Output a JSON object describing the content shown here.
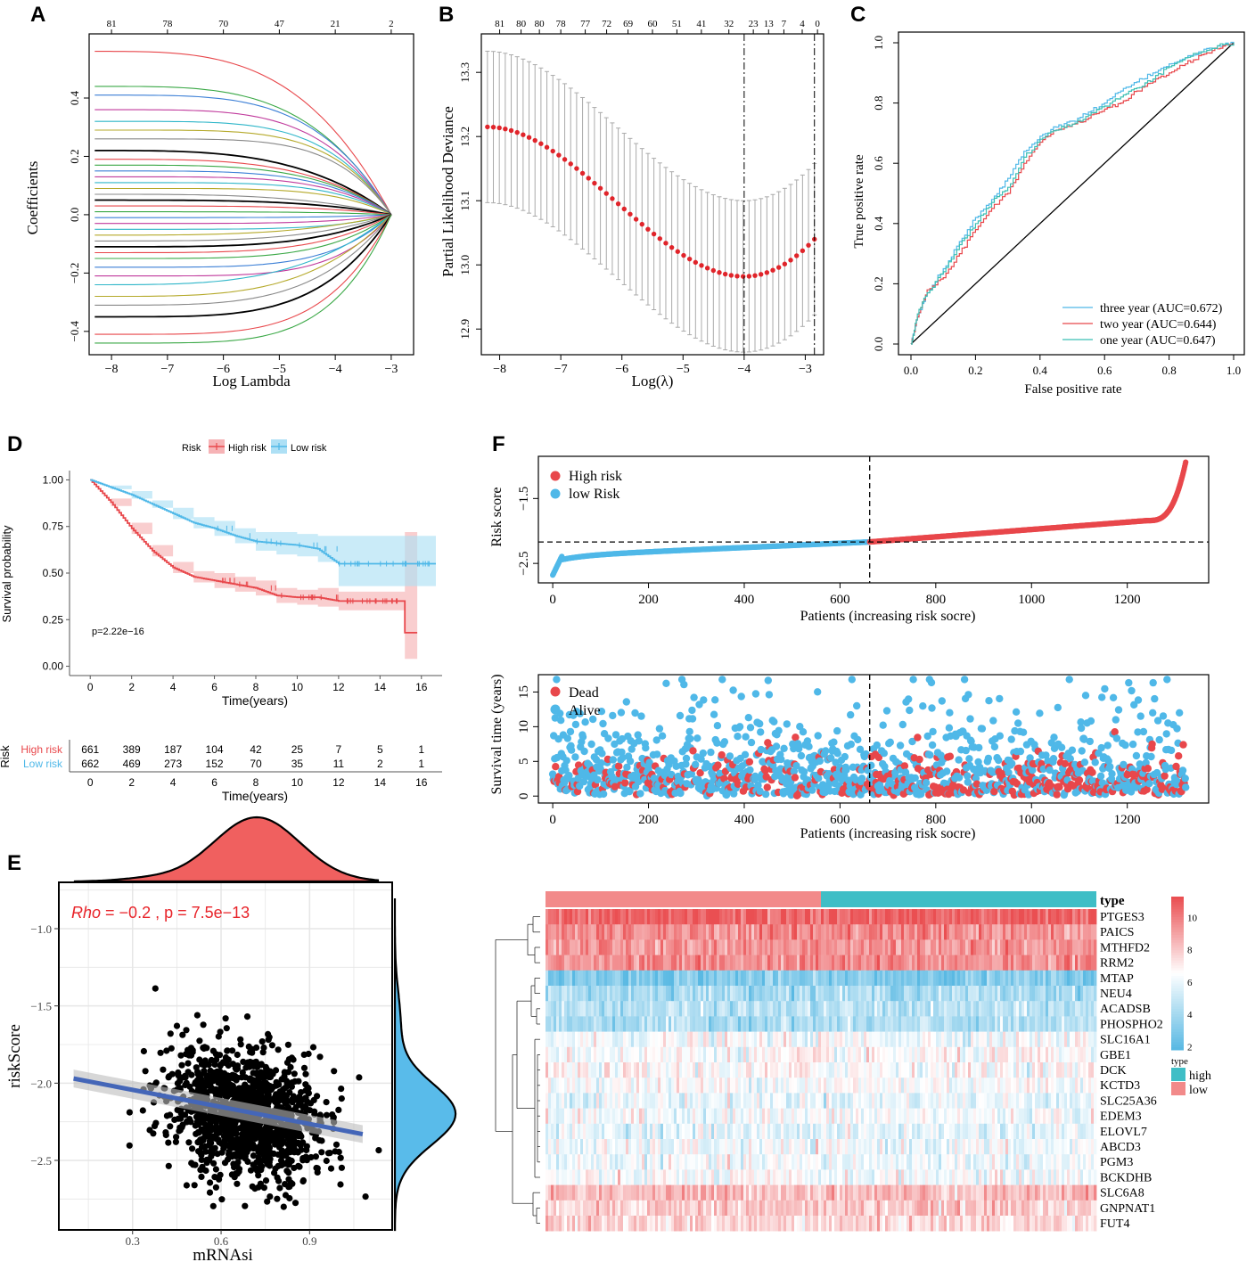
{
  "colors": {
    "high": "#e8474b",
    "low": "#4fb8e8",
    "teal": "#3bbfb3",
    "ciHigh": "#f6b3b6",
    "ciLow": "#aee0f5",
    "heatHigh": "#ea4f52",
    "heatLow": "#5ab9e3",
    "annotHigh": "#3fbec6",
    "annotLow": "#f28a8a",
    "deviance": "#e0242a",
    "regression": "#4466b8",
    "densityRed": "#f0605f",
    "densityBlue": "#59bbea"
  },
  "panels": {
    "A": {
      "letter": "A"
    },
    "B": {
      "letter": "B"
    },
    "C": {
      "letter": "C"
    },
    "D": {
      "letter": "D"
    },
    "E": {
      "letter": "E"
    },
    "F": {
      "letter": "F"
    }
  },
  "chart_data": [
    {
      "id": "A",
      "type": "line",
      "title": "",
      "xlabel": "Log Lambda",
      "ylabel": "Coefficients",
      "xlim": [
        -8.4,
        -2.6
      ],
      "ylim": [
        -0.48,
        0.62
      ],
      "xticks": [
        -8,
        -7,
        -6,
        -5,
        -4,
        -3
      ],
      "yticks": [
        -0.4,
        -0.2,
        0.0,
        0.2,
        0.4
      ],
      "top_axis": {
        "positions": [
          -8,
          -7,
          -6,
          -5,
          -4,
          -3
        ],
        "labels": [
          "81",
          "78",
          "70",
          "47",
          "21",
          "2"
        ]
      },
      "series_start_values": [
        0.56,
        0.44,
        0.41,
        0.36,
        0.32,
        0.29,
        0.26,
        0.22,
        0.19,
        0.17,
        0.15,
        0.13,
        0.11,
        0.09,
        0.07,
        0.05,
        0.03,
        0.01,
        -0.01,
        -0.03,
        -0.05,
        -0.07,
        -0.09,
        -0.11,
        -0.13,
        -0.15,
        -0.18,
        -0.21,
        -0.24,
        -0.28,
        -0.31,
        -0.35,
        -0.41,
        -0.44
      ]
    },
    {
      "id": "B",
      "type": "scatter",
      "title": "",
      "xlabel": "Log(λ)",
      "ylabel": "Partial Likelihood Deviance",
      "xlim": [
        -8.3,
        -2.7
      ],
      "ylim": [
        12.86,
        13.36
      ],
      "xticks": [
        -8,
        -7,
        -6,
        -5,
        -4,
        -3
      ],
      "yticks": [
        12.9,
        13.0,
        13.1,
        13.2,
        13.3
      ],
      "top_axis": {
        "positions": [
          -8.0,
          -7.65,
          -7.35,
          -7.0,
          -6.6,
          -6.25,
          -5.9,
          -5.5,
          -5.1,
          -4.7,
          -4.25,
          -3.85,
          -3.6,
          -3.35,
          -3.05,
          -2.8
        ],
        "labels": [
          "81",
          "80",
          "80",
          "78",
          "77",
          "72",
          "69",
          "60",
          "51",
          "41",
          "32",
          "23",
          "13",
          "7",
          "4",
          "0"
        ]
      },
      "x_start": -8.2,
      "x_end": -2.85,
      "n_points": 56,
      "mean_start": 13.215,
      "mean_min": 12.982,
      "x_min": -4.0,
      "mean_end": 13.04,
      "se_half_width": 0.118,
      "vlines": [
        -4.0,
        -2.85
      ]
    },
    {
      "id": "C",
      "type": "line",
      "title": "",
      "xlabel": "False positive rate",
      "ylabel": "True positive rate",
      "xlim": [
        0,
        1
      ],
      "ylim": [
        0,
        1
      ],
      "xticks": [
        0.0,
        0.2,
        0.4,
        0.6,
        0.8,
        1.0
      ],
      "yticks": [
        0.0,
        0.2,
        0.4,
        0.6,
        0.8,
        1.0
      ],
      "tick_labels": [
        "0.0",
        "0.2",
        "0.4",
        "0.6",
        "0.8",
        "1.0"
      ],
      "series": [
        {
          "name": "three year (AUC=0.672)",
          "color": "#4fb8e8",
          "x": [
            0,
            0.02,
            0.05,
            0.1,
            0.15,
            0.2,
            0.25,
            0.3,
            0.35,
            0.4,
            0.45,
            0.5,
            0.55,
            0.6,
            0.65,
            0.7,
            0.75,
            0.8,
            0.85,
            0.9,
            0.95,
            1.0
          ],
          "y": [
            0,
            0.09,
            0.17,
            0.25,
            0.34,
            0.42,
            0.48,
            0.55,
            0.64,
            0.69,
            0.72,
            0.74,
            0.77,
            0.8,
            0.84,
            0.87,
            0.9,
            0.93,
            0.95,
            0.97,
            0.99,
            1.0
          ]
        },
        {
          "name": "two year (AUC=0.644)",
          "color": "#e8474b",
          "x": [
            0,
            0.02,
            0.05,
            0.1,
            0.15,
            0.2,
            0.25,
            0.3,
            0.35,
            0.4,
            0.45,
            0.5,
            0.55,
            0.6,
            0.65,
            0.7,
            0.75,
            0.8,
            0.85,
            0.9,
            0.95,
            1.0
          ],
          "y": [
            0,
            0.09,
            0.18,
            0.22,
            0.3,
            0.38,
            0.45,
            0.5,
            0.6,
            0.67,
            0.71,
            0.73,
            0.75,
            0.78,
            0.8,
            0.84,
            0.87,
            0.9,
            0.93,
            0.96,
            0.98,
            1.0
          ]
        },
        {
          "name": "one year (AUC=0.647)",
          "color": "#3bbfb3",
          "x": [
            0,
            0.02,
            0.05,
            0.1,
            0.15,
            0.2,
            0.25,
            0.3,
            0.35,
            0.4,
            0.45,
            0.5,
            0.55,
            0.6,
            0.65,
            0.7,
            0.75,
            0.8,
            0.85,
            0.9,
            0.95,
            1.0
          ],
          "y": [
            0,
            0.1,
            0.17,
            0.24,
            0.33,
            0.4,
            0.47,
            0.52,
            0.62,
            0.68,
            0.71,
            0.73,
            0.76,
            0.79,
            0.82,
            0.85,
            0.88,
            0.92,
            0.95,
            0.97,
            0.99,
            1.0
          ]
        }
      ]
    },
    {
      "id": "D",
      "type": "line",
      "title": "",
      "xlabel": "Time(years)",
      "ylabel": "Survival probability",
      "xlim": [
        -1,
        17
      ],
      "ylim": [
        0,
        1
      ],
      "xticks": [
        0,
        2,
        4,
        6,
        8,
        10,
        12,
        14,
        16
      ],
      "yticks": [
        0.0,
        0.25,
        0.5,
        0.75,
        1.0
      ],
      "ytick_labels": [
        "0.00",
        "0.25",
        "0.50",
        "0.75",
        "1.00"
      ],
      "legend_title": "Risk",
      "annotation": "p=2.22e−16",
      "series": [
        {
          "name": "High risk",
          "color": "#e8474b",
          "time": [
            0,
            1,
            2,
            3,
            4,
            5,
            6,
            7,
            8,
            9,
            10,
            11,
            12,
            13,
            14,
            15.2,
            15.2,
            15.8
          ],
          "surv": [
            1.0,
            0.88,
            0.74,
            0.62,
            0.53,
            0.48,
            0.46,
            0.44,
            0.42,
            0.38,
            0.37,
            0.37,
            0.35,
            0.35,
            0.35,
            0.35,
            0.18,
            0.18
          ],
          "lower": [
            1.0,
            0.86,
            0.71,
            0.59,
            0.5,
            0.45,
            0.42,
            0.4,
            0.38,
            0.34,
            0.33,
            0.32,
            0.3,
            0.3,
            0.3,
            0.3,
            0.04,
            0.04
          ],
          "upper": [
            1.0,
            0.9,
            0.77,
            0.65,
            0.56,
            0.51,
            0.5,
            0.48,
            0.46,
            0.42,
            0.41,
            0.42,
            0.4,
            0.4,
            0.4,
            0.4,
            0.72,
            0.72
          ]
        },
        {
          "name": "Low risk",
          "color": "#4fb8e8",
          "time": [
            0,
            1,
            2,
            3,
            4,
            5,
            6,
            7,
            8,
            9,
            10,
            11,
            12,
            13,
            14,
            15,
            16,
            16.7
          ],
          "surv": [
            1.0,
            0.96,
            0.92,
            0.87,
            0.82,
            0.77,
            0.74,
            0.7,
            0.67,
            0.66,
            0.65,
            0.63,
            0.55,
            0.55,
            0.55,
            0.55,
            0.55,
            0.55
          ],
          "lower": [
            1.0,
            0.95,
            0.9,
            0.85,
            0.79,
            0.74,
            0.7,
            0.66,
            0.62,
            0.6,
            0.59,
            0.56,
            0.43,
            0.43,
            0.43,
            0.43,
            0.43,
            0.43
          ],
          "upper": [
            1.0,
            0.97,
            0.94,
            0.89,
            0.85,
            0.8,
            0.78,
            0.74,
            0.72,
            0.72,
            0.71,
            0.7,
            0.7,
            0.7,
            0.7,
            0.7,
            0.7,
            0.7
          ]
        }
      ],
      "risk_table": {
        "title": "Risk",
        "xlabel": "Time(years)",
        "times": [
          0,
          2,
          4,
          6,
          8,
          10,
          12,
          14,
          16
        ],
        "rows": [
          {
            "name": "High risk",
            "values": [
              "661",
              "389",
              "187",
              "104",
              "42",
              "25",
              "7",
              "5",
              "1"
            ]
          },
          {
            "name": "Low risk",
            "values": [
              "662",
              "469",
              "273",
              "152",
              "70",
              "35",
              "11",
              "2",
              "1"
            ]
          }
        ]
      }
    },
    {
      "id": "E",
      "type": "scatter",
      "title": "",
      "xlabel": "mRNAsi",
      "ylabel": "riskScore",
      "xlim": [
        0.05,
        1.18
      ],
      "ylim": [
        -2.95,
        -0.7
      ],
      "xticks": [
        0.3,
        0.6,
        0.9
      ],
      "yticks": [
        -2.5,
        -2.0,
        -1.5,
        -1.0
      ],
      "annotation": {
        "rho_label": "Rho",
        "rest": " = −0.2 , p = 7.5e−13"
      },
      "regression": {
        "x": [
          0.1,
          1.08
        ],
        "y": [
          -1.97,
          -2.33
        ]
      },
      "n_points": 1300,
      "center": {
        "x": 0.68,
        "y": -2.2
      }
    },
    {
      "id": "F-top",
      "type": "scatter",
      "title": "",
      "xlabel": "Patients (increasing risk socre)",
      "ylabel": "Risk score",
      "xlim": [
        -30,
        1370
      ],
      "ylim": [
        -2.8,
        -0.85
      ],
      "xticks": [
        0,
        200,
        400,
        600,
        800,
        1000,
        1200
      ],
      "yticks": [
        -2.5,
        -1.5
      ],
      "n_patients": 1323,
      "cutoff": 662,
      "cutoff_score": -2.17,
      "legend": [
        "High risk",
        "low Risk"
      ]
    },
    {
      "id": "F-mid",
      "type": "scatter",
      "title": "",
      "xlabel": "Patients (increasing risk socre)",
      "ylabel": "Survival time (years)",
      "xlim": [
        -30,
        1370
      ],
      "ylim": [
        -1,
        17.5
      ],
      "xticks": [
        0,
        200,
        400,
        600,
        800,
        1000,
        1200
      ],
      "yticks": [
        0,
        5,
        10,
        15
      ],
      "cutoff": 662,
      "legend": [
        "Dead",
        "Alive"
      ]
    },
    {
      "id": "F-heat",
      "type": "heatmap",
      "title": "",
      "annotation_title": "type",
      "genes": [
        "PTGES3",
        "PAICS",
        "MTHFD2",
        "RRM2",
        "MTAP",
        "NEU4",
        "ACADSB",
        "PHOSPHO2",
        "SLC16A1",
        "GBE1",
        "DCK",
        "KCTD3",
        "SLC25A36",
        "EDEM3",
        "ELOVL7",
        "ABCD3",
        "PGM3",
        "BCKDHB",
        "SLC6A8",
        "GNPNAT1",
        "FUT4"
      ],
      "gene_means": [
        10.8,
        9.6,
        9.4,
        9.6,
        3.0,
        4.2,
        4.5,
        4.2,
        6.3,
        6.5,
        6.6,
        6.5,
        6.0,
        6.3,
        5.8,
        6.1,
        6.1,
        6.3,
        8.4,
        8.0,
        7.6
      ],
      "colorbar": {
        "ticks": [
          "2",
          "4",
          "6",
          "8",
          "10"
        ],
        "range": [
          1.8,
          11.3
        ]
      },
      "type_legend": {
        "title": "type",
        "items": [
          "high",
          "low"
        ]
      },
      "split_fraction": 0.5
    }
  ]
}
